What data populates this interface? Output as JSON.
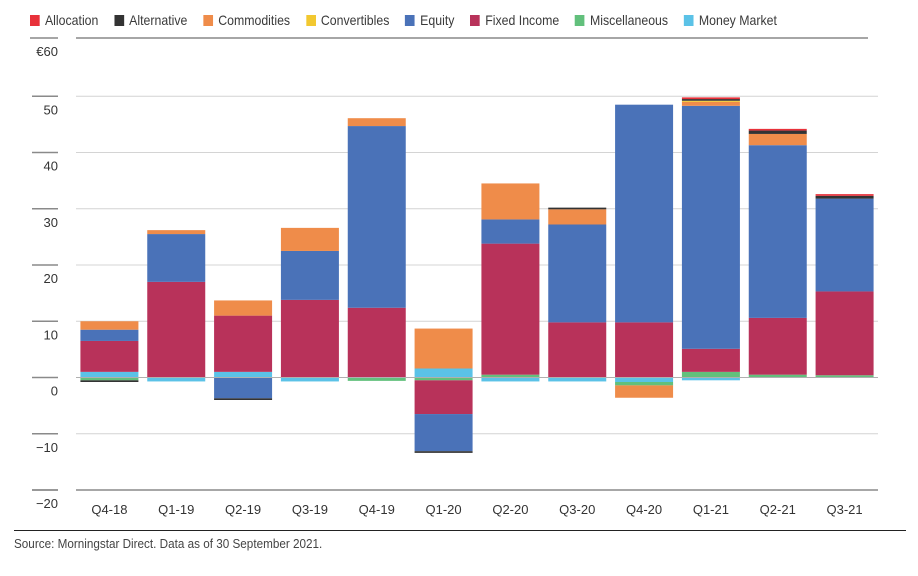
{
  "chart_data": {
    "type": "bar",
    "stacked": true,
    "title": "",
    "xlabel": "",
    "ylabel": "",
    "currency_prefix": "€",
    "ylim": [
      -20,
      60
    ],
    "yticks": [
      60,
      50,
      40,
      30,
      20,
      10,
      0,
      -10,
      -20
    ],
    "ytick_labels": [
      "€60",
      "50",
      "40",
      "30",
      "20",
      "10",
      "0",
      "−10",
      "−20"
    ],
    "grid": true,
    "legend_position": "top-left",
    "categories": [
      "Q4-18",
      "Q1-19",
      "Q2-19",
      "Q3-19",
      "Q4-19",
      "Q1-20",
      "Q2-20",
      "Q3-20",
      "Q4-20",
      "Q1-21",
      "Q2-21",
      "Q3-21"
    ],
    "series": [
      {
        "name": "Allocation",
        "color": "#e8313a",
        "values": [
          0,
          0,
          0,
          0,
          0,
          0,
          0,
          0,
          0,
          0.3,
          0.3,
          0.3
        ]
      },
      {
        "name": "Alternative",
        "color": "#333333",
        "values": [
          -0.3,
          0,
          -0.3,
          0,
          0,
          -0.3,
          0,
          0.3,
          0,
          0.3,
          0.6,
          0.5
        ]
      },
      {
        "name": "Commodities",
        "color": "#ef8c4a",
        "values": [
          1.5,
          0.7,
          2.7,
          4.1,
          1.4,
          7.1,
          6.4,
          2.7,
          -2.2,
          0.7,
          2.0,
          0
        ]
      },
      {
        "name": "Convertibles",
        "color": "#f2c830",
        "values": [
          0,
          0,
          0,
          0,
          0,
          0,
          0,
          0,
          0,
          0.2,
          0,
          0
        ]
      },
      {
        "name": "Equity",
        "color": "#4a72b8",
        "values": [
          2.0,
          8.5,
          -3.7,
          8.7,
          32.3,
          -6.6,
          4.3,
          17.4,
          38.7,
          43.2,
          30.7,
          16.5
        ]
      },
      {
        "name": "Fixed Income",
        "color": "#b8325a",
        "values": [
          5.5,
          17.0,
          10.0,
          13.8,
          12.4,
          -6.0,
          23.3,
          9.8,
          9.8,
          4.1,
          10.1,
          14.9
        ]
      },
      {
        "name": "Miscellaneous",
        "color": "#62c07c",
        "values": [
          -0.5,
          0,
          0,
          0,
          -0.6,
          -0.5,
          0.5,
          0,
          -0.6,
          1.0,
          0.5,
          0.4
        ]
      },
      {
        "name": "Money Market",
        "color": "#5bc2e7",
        "values": [
          1.0,
          -0.7,
          1.0,
          -0.7,
          0,
          1.6,
          -0.7,
          -0.7,
          -0.8,
          -0.5,
          0,
          0
        ]
      }
    ],
    "stack_order": [
      "Money Market",
      "Miscellaneous",
      "Fixed Income",
      "Equity",
      "Commodities",
      "Convertibles",
      "Alternative",
      "Allocation"
    ],
    "source": "Source: Morningstar Direct. Data as of 30 September 2021."
  }
}
